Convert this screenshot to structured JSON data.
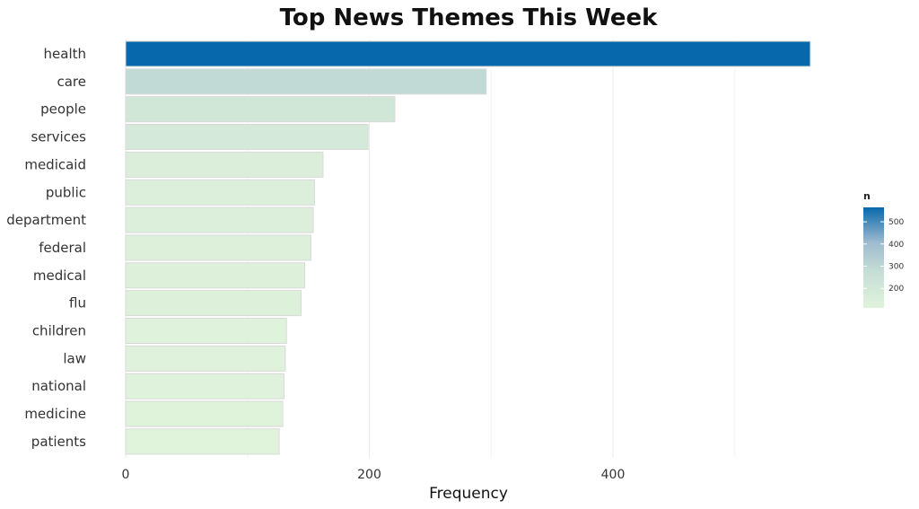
{
  "chart_data": {
    "type": "bar",
    "orientation": "horizontal",
    "title": "Top News Themes This Week",
    "xlabel": "Frequency",
    "ylabel": "",
    "categories": [
      "health",
      "care",
      "people",
      "services",
      "medicaid",
      "public",
      "department",
      "federal",
      "medical",
      "flu",
      "children",
      "law",
      "national",
      "medicine",
      "patients"
    ],
    "values": [
      562,
      296,
      221,
      199,
      162,
      155,
      154,
      152,
      147,
      144,
      132,
      131,
      130,
      129,
      126
    ],
    "xlim": [
      0,
      570
    ],
    "xticks": [
      "0",
      "200",
      "400"
    ],
    "grid": true,
    "legend": {
      "title": "n",
      "ticks": [
        "500",
        "400",
        "300",
        "200"
      ],
      "placement": "right",
      "color_low": "#e0f3db",
      "color_high": "#0868ac"
    }
  }
}
